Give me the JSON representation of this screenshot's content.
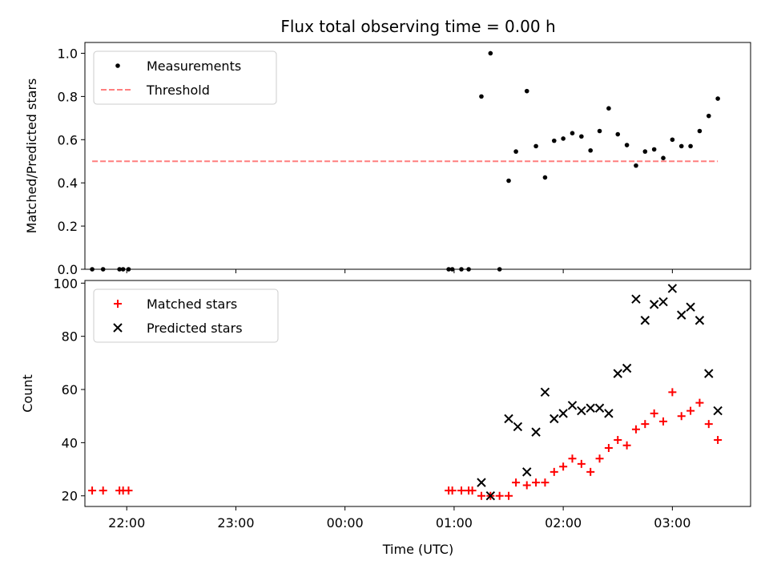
{
  "title": "Flux total observing time = 0.00 h",
  "chart_data": [
    {
      "type": "scatter",
      "ylabel": "Matched/Predicted stars",
      "ylim": [
        0,
        1.05
      ],
      "x_ticks": [
        "22:00",
        "23:00",
        "00:00",
        "01:00",
        "02:00",
        "03:00"
      ],
      "x_tick_hours": [
        22,
        23,
        24,
        25,
        26,
        27
      ],
      "y_ticks": [
        "0.0",
        "0.2",
        "0.4",
        "0.6",
        "0.8",
        "1.0"
      ],
      "y_tick_values": [
        0,
        0.2,
        0.4,
        0.6,
        0.8,
        1.0
      ],
      "legend_position": "top-left",
      "series": [
        {
          "name": "Measurements",
          "marker": "dot",
          "color": "#000000",
          "points": [
            [
              "21:41",
              0.0
            ],
            [
              "21:47",
              0.0
            ],
            [
              "21:56",
              0.0
            ],
            [
              "21:58",
              0.0
            ],
            [
              "22:01",
              0.0
            ],
            [
              "00:57",
              0.0
            ],
            [
              "00:59",
              0.0
            ],
            [
              "01:04",
              0.0
            ],
            [
              "01:08",
              0.0
            ],
            [
              "01:15",
              0.8
            ],
            [
              "01:20",
              1.0
            ],
            [
              "01:25",
              0.0
            ],
            [
              "01:30",
              0.41
            ],
            [
              "01:34",
              0.545
            ],
            [
              "01:40",
              0.825
            ],
            [
              "01:45",
              0.57
            ],
            [
              "01:50",
              0.425
            ],
            [
              "01:55",
              0.595
            ],
            [
              "02:00",
              0.605
            ],
            [
              "02:05",
              0.63
            ],
            [
              "02:10",
              0.615
            ],
            [
              "02:15",
              0.55
            ],
            [
              "02:20",
              0.64
            ],
            [
              "02:25",
              0.745
            ],
            [
              "02:30",
              0.625
            ],
            [
              "02:35",
              0.575
            ],
            [
              "02:40",
              0.48
            ],
            [
              "02:45",
              0.545
            ],
            [
              "02:50",
              0.555
            ],
            [
              "02:55",
              0.515
            ],
            [
              "03:00",
              0.6
            ],
            [
              "03:05",
              0.57
            ],
            [
              "03:10",
              0.57
            ],
            [
              "03:15",
              0.64
            ],
            [
              "03:20",
              0.71
            ],
            [
              "03:25",
              0.79
            ]
          ]
        },
        {
          "name": "Threshold",
          "type": "line",
          "style": "dashed",
          "color": "#ff7f7f",
          "points": [
            [
              "21:41",
              0.5
            ],
            [
              "03:25",
              0.5
            ]
          ]
        }
      ]
    },
    {
      "type": "scatter",
      "xlabel": "Time (UTC)",
      "ylabel": "Count",
      "ylim": [
        16,
        101
      ],
      "x_ticks": [
        "22:00",
        "23:00",
        "00:00",
        "01:00",
        "02:00",
        "03:00"
      ],
      "x_tick_hours": [
        22,
        23,
        24,
        25,
        26,
        27
      ],
      "y_ticks": [
        "20",
        "40",
        "60",
        "80",
        "100"
      ],
      "y_tick_values": [
        20,
        40,
        60,
        80,
        100
      ],
      "legend_position": "top-left",
      "series": [
        {
          "name": "Matched stars",
          "marker": "plus",
          "color": "#ff0000",
          "points": [
            [
              "21:41",
              22
            ],
            [
              "21:47",
              22
            ],
            [
              "21:56",
              22
            ],
            [
              "21:58",
              22
            ],
            [
              "22:01",
              22
            ],
            [
              "00:57",
              22
            ],
            [
              "00:59",
              22
            ],
            [
              "01:04",
              22
            ],
            [
              "01:08",
              22
            ],
            [
              "01:10",
              22
            ],
            [
              "01:15",
              20
            ],
            [
              "01:20",
              20
            ],
            [
              "01:25",
              20
            ],
            [
              "01:30",
              20
            ],
            [
              "01:34",
              25
            ],
            [
              "01:40",
              24
            ],
            [
              "01:45",
              25
            ],
            [
              "01:50",
              25
            ],
            [
              "01:55",
              29
            ],
            [
              "02:00",
              31
            ],
            [
              "02:05",
              34
            ],
            [
              "02:10",
              32
            ],
            [
              "02:15",
              29
            ],
            [
              "02:20",
              34
            ],
            [
              "02:25",
              38
            ],
            [
              "02:30",
              41
            ],
            [
              "02:35",
              39
            ],
            [
              "02:40",
              45
            ],
            [
              "02:45",
              47
            ],
            [
              "02:50",
              51
            ],
            [
              "02:55",
              48
            ],
            [
              "03:00",
              59
            ],
            [
              "03:05",
              50
            ],
            [
              "03:10",
              52
            ],
            [
              "03:15",
              55
            ],
            [
              "03:20",
              47
            ],
            [
              "03:25",
              41
            ]
          ]
        },
        {
          "name": "Predicted stars",
          "marker": "x",
          "color": "#000000",
          "points": [
            [
              "01:15",
              25
            ],
            [
              "01:20",
              20
            ],
            [
              "01:30",
              49
            ],
            [
              "01:35",
              46
            ],
            [
              "01:40",
              29
            ],
            [
              "01:45",
              44
            ],
            [
              "01:50",
              59
            ],
            [
              "01:55",
              49
            ],
            [
              "02:00",
              51
            ],
            [
              "02:05",
              54
            ],
            [
              "02:10",
              52
            ],
            [
              "02:15",
              53
            ],
            [
              "02:20",
              53
            ],
            [
              "02:25",
              51
            ],
            [
              "02:30",
              66
            ],
            [
              "02:35",
              68
            ],
            [
              "02:40",
              94
            ],
            [
              "02:45",
              86
            ],
            [
              "02:50",
              92
            ],
            [
              "02:55",
              93
            ],
            [
              "03:00",
              98
            ],
            [
              "03:05",
              88
            ],
            [
              "03:10",
              91
            ],
            [
              "03:15",
              86
            ],
            [
              "03:20",
              66
            ],
            [
              "03:25",
              52
            ]
          ]
        }
      ]
    }
  ]
}
